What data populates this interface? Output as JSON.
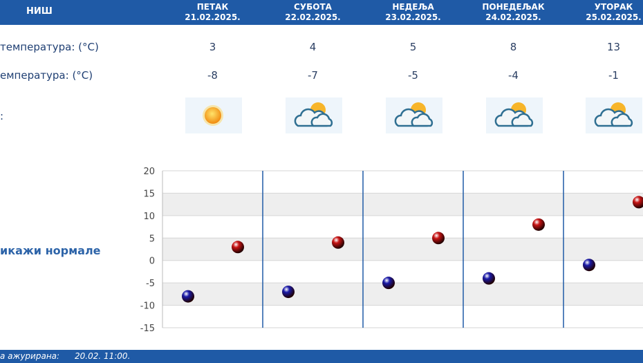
{
  "header": {
    "city": "НИШ",
    "days": [
      {
        "name": "ПЕТАК",
        "date": "21.02.2025."
      },
      {
        "name": "СУБОТА",
        "date": "22.02.2025."
      },
      {
        "name": "НЕДЕЉА",
        "date": "23.02.2025."
      },
      {
        "name": "ПОНЕДЕЉАК",
        "date": "24.02.2025."
      },
      {
        "name": "УТОРАК",
        "date": "25.02.2025."
      }
    ]
  },
  "rows": {
    "max_label": "температура: (°C)",
    "min_label": "емпература: (°C)",
    "icon_label": ":"
  },
  "forecast": {
    "max": [
      "3",
      "4",
      "5",
      "8",
      "13"
    ],
    "min": [
      "-8",
      "-7",
      "-5",
      "-4",
      "-1"
    ],
    "icons": [
      "sun-icon",
      "partly-cloudy-icon",
      "partly-cloudy-icon",
      "partly-cloudy-icon",
      "partly-cloudy-icon"
    ]
  },
  "normals_link": "икажи нормале",
  "footer": {
    "label": "а ажурирана:",
    "value": "20.02. 11:00."
  },
  "chart_data": {
    "type": "scatter",
    "categories": [
      "21.02.2025.",
      "22.02.2025.",
      "23.02.2025.",
      "24.02.2025.",
      "25.02.2025."
    ],
    "series": [
      {
        "values": [
          -8,
          -7,
          -5,
          -4,
          -1
        ],
        "color": "#1a1aa8"
      },
      {
        "values": [
          3,
          4,
          5,
          8,
          13
        ],
        "color": "#c81414"
      }
    ],
    "ylim": [
      -15,
      20
    ],
    "yticks": [
      20,
      15,
      10,
      5,
      0,
      -5,
      -10,
      -15
    ],
    "grid": true,
    "band_color": "#eeeeee",
    "divider_color": "#1f5aa6"
  },
  "colors": {
    "header": "#1f5aa6",
    "text": "#2b3f63",
    "link": "#2c63a8"
  }
}
